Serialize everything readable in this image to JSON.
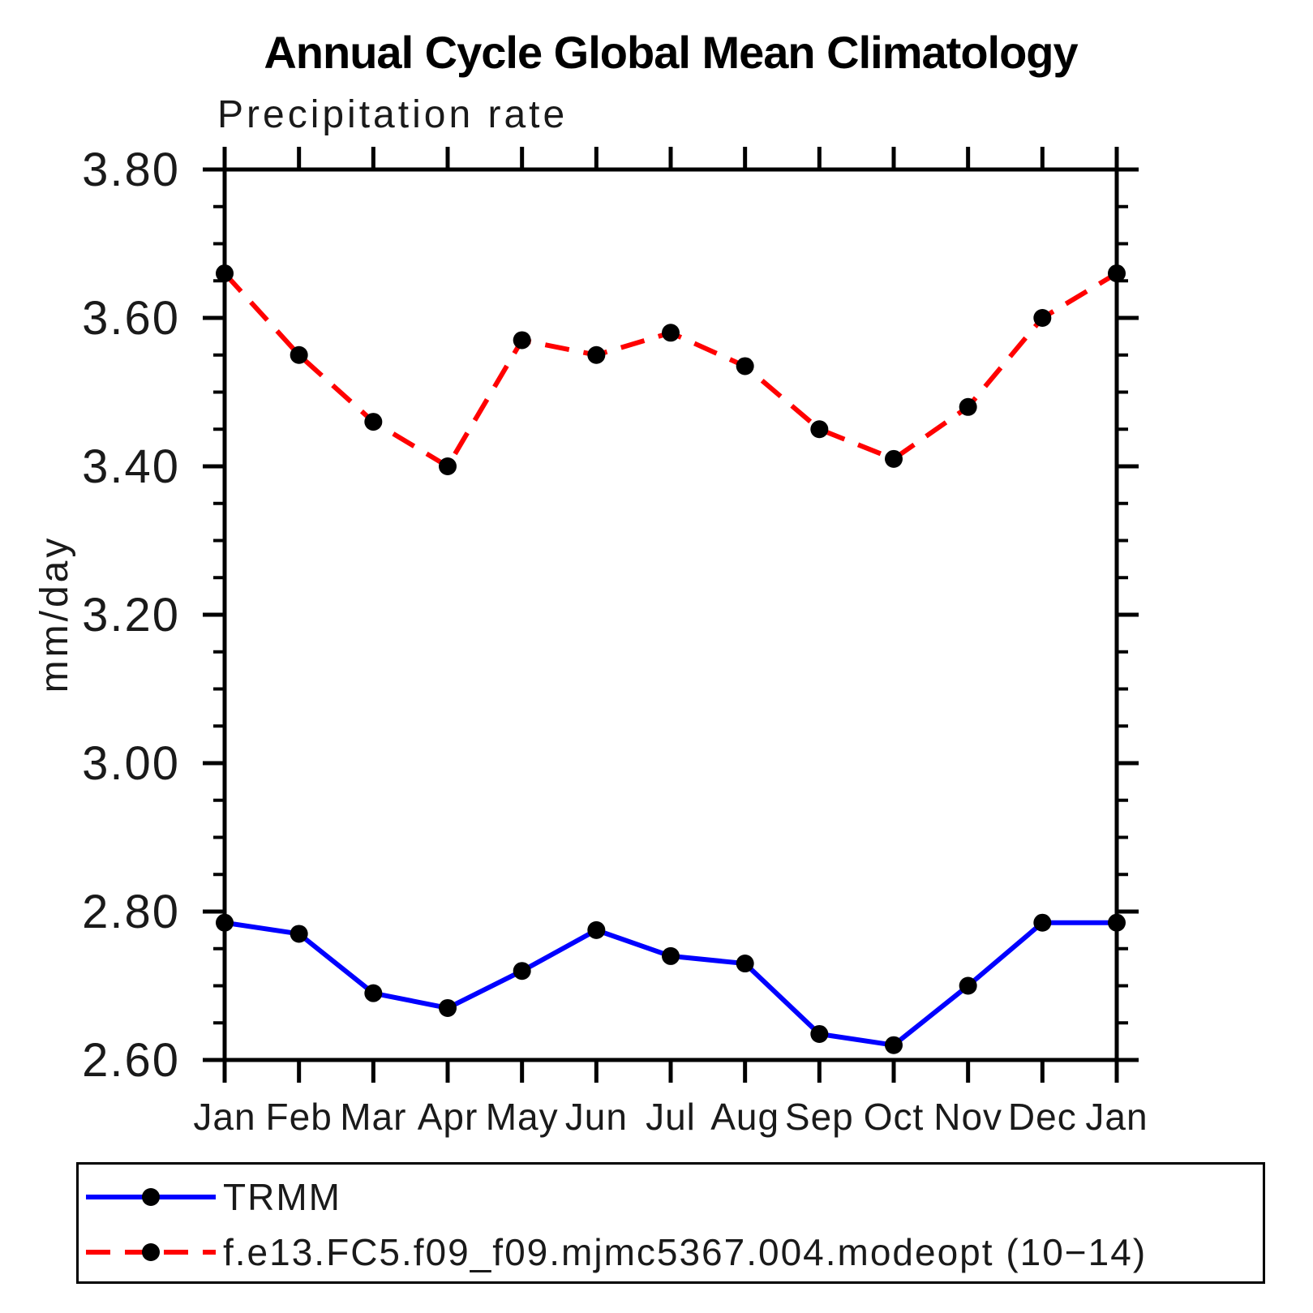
{
  "title": "Annual Cycle Global Mean Climatology",
  "chart_data": {
    "type": "line",
    "title": "Annual Cycle Global Mean Climatology",
    "subtitle": "Precipitation rate",
    "ylabel": "mm/day",
    "xlabel": "",
    "x": [
      "Jan",
      "Feb",
      "Mar",
      "Apr",
      "May",
      "Jun",
      "Jul",
      "Aug",
      "Sep",
      "Oct",
      "Nov",
      "Dec",
      "Jan"
    ],
    "ylim": [
      2.6,
      3.8
    ],
    "ytick_major_step": 0.2,
    "ytick_minor_step": 0.05,
    "yticks": [
      "2.60",
      "2.80",
      "3.00",
      "3.20",
      "3.40",
      "3.60",
      "3.80"
    ],
    "grid": false,
    "legend_position": "bottom-left-box",
    "axis_color": "#000000",
    "marker_color": "#000000",
    "series": [
      {
        "name": "TRMM",
        "color": "#0000ff",
        "style": "solid",
        "marker": "circle",
        "values": [
          2.785,
          2.77,
          2.69,
          2.67,
          2.72,
          2.775,
          2.74,
          2.73,
          2.635,
          2.62,
          2.7,
          2.785,
          2.785
        ]
      },
      {
        "name": "f.e13.FC5.f09_f09.mjmc5367.004.modeopt (10−14)",
        "color": "#ff0000",
        "style": "dashed",
        "marker": "circle",
        "values": [
          3.66,
          3.55,
          3.46,
          3.4,
          3.57,
          3.55,
          3.58,
          3.535,
          3.45,
          3.41,
          3.48,
          3.6,
          3.66
        ]
      }
    ]
  }
}
